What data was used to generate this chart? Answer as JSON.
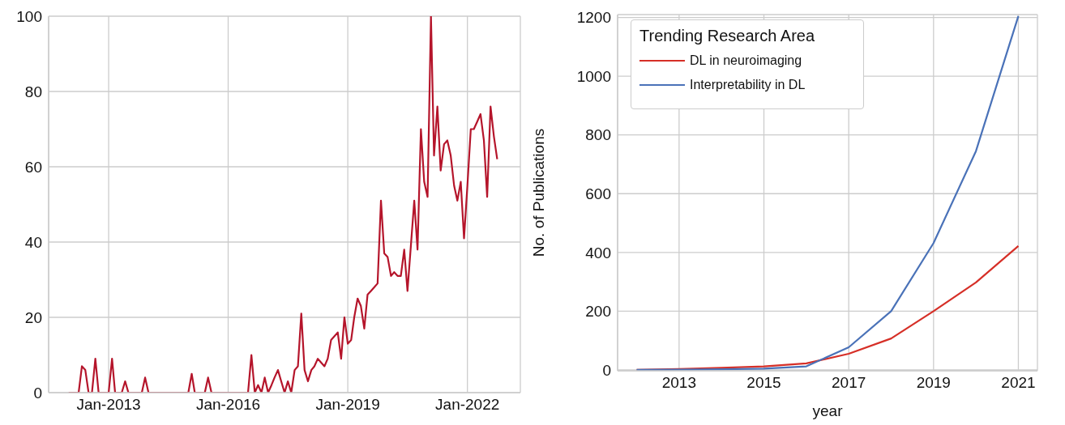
{
  "chart_data": [
    {
      "type": "line",
      "x": [
        "2012-01",
        "2012-02",
        "2012-03",
        "2012-04",
        "2012-05",
        "2012-06",
        "2012-07",
        "2012-08",
        "2012-09",
        "2012-10",
        "2012-11",
        "2012-12",
        "2013-01",
        "2013-02",
        "2013-03",
        "2013-04",
        "2013-05",
        "2013-06",
        "2013-07",
        "2013-08",
        "2013-09",
        "2013-10",
        "2013-11",
        "2013-12",
        "2014-01",
        "2014-02",
        "2014-03",
        "2014-04",
        "2014-05",
        "2014-06",
        "2014-07",
        "2014-08",
        "2014-09",
        "2014-10",
        "2014-11",
        "2014-12",
        "2015-01",
        "2015-02",
        "2015-03",
        "2015-04",
        "2015-05",
        "2015-06",
        "2015-07",
        "2015-08",
        "2015-09",
        "2015-10",
        "2015-11",
        "2015-12",
        "2016-01",
        "2016-02",
        "2016-03",
        "2016-04",
        "2016-05",
        "2016-06",
        "2016-07",
        "2016-08",
        "2016-09",
        "2016-10",
        "2016-11",
        "2016-12",
        "2017-01",
        "2017-02",
        "2017-03",
        "2017-04",
        "2017-05",
        "2017-06",
        "2017-07",
        "2017-08",
        "2017-09",
        "2017-10",
        "2017-11",
        "2017-12",
        "2018-01",
        "2018-02",
        "2018-03",
        "2018-04",
        "2018-05",
        "2018-06",
        "2018-07",
        "2018-08",
        "2018-09",
        "2018-10",
        "2018-11",
        "2018-12",
        "2019-01",
        "2019-02",
        "2019-03",
        "2019-04",
        "2019-05",
        "2019-06",
        "2019-07",
        "2019-08",
        "2019-09",
        "2019-10",
        "2019-11",
        "2019-12",
        "2020-01",
        "2020-02",
        "2020-03",
        "2020-04",
        "2020-05",
        "2020-06",
        "2020-07",
        "2020-08",
        "2020-09",
        "2020-10",
        "2020-11",
        "2020-12",
        "2021-01",
        "2021-02",
        "2021-03",
        "2021-04",
        "2021-05",
        "2021-06",
        "2021-07",
        "2021-08",
        "2021-09",
        "2021-10",
        "2021-11",
        "2021-12",
        "2022-01",
        "2022-02",
        "2022-03",
        "2022-04",
        "2022-05",
        "2022-06",
        "2022-07",
        "2022-08",
        "2022-09",
        "2022-10"
      ],
      "series": [
        {
          "color": "#b5152b",
          "values": [
            0,
            0,
            0,
            0,
            7,
            6,
            0,
            0,
            9,
            0,
            0,
            0,
            0,
            9,
            0,
            0,
            0,
            3,
            0,
            0,
            0,
            0,
            0,
            4,
            0,
            0,
            0,
            0,
            0,
            0,
            0,
            0,
            0,
            0,
            0,
            0,
            0,
            5,
            0,
            0,
            0,
            0,
            4,
            0,
            0,
            0,
            0,
            0,
            0,
            0,
            0,
            0,
            0,
            0,
            0,
            10,
            0,
            2,
            0,
            4,
            0,
            2,
            4,
            6,
            3,
            0,
            3,
            0,
            6,
            7,
            21,
            6,
            3,
            6,
            7,
            9,
            8,
            7,
            9,
            14,
            15,
            16,
            9,
            20,
            13,
            14,
            20,
            25,
            23,
            17,
            26,
            27,
            28,
            29,
            51,
            37,
            36,
            31,
            32,
            31,
            31,
            38,
            27,
            39,
            51,
            38,
            70,
            56,
            52,
            100,
            63,
            76,
            59,
            66,
            67,
            63,
            55,
            51,
            56,
            41,
            55,
            70,
            70,
            72,
            74,
            67,
            52,
            76,
            68,
            62
          ]
        }
      ],
      "xlim": [
        "2011-07",
        "2023-05"
      ],
      "xticks": [
        {
          "value": "2013-01",
          "label": "Jan-2013"
        },
        {
          "value": "2016-01",
          "label": "Jan-2016"
        },
        {
          "value": "2019-01",
          "label": "Jan-2019"
        },
        {
          "value": "2022-01",
          "label": "Jan-2022"
        }
      ],
      "ylim": [
        0,
        100
      ],
      "yticks": [
        0,
        20,
        40,
        60,
        80,
        100
      ],
      "grid": true
    },
    {
      "type": "line",
      "xlabel": "year",
      "ylabel": "No. of Publications",
      "legend_title": "Trending Research Area",
      "x": [
        2012,
        2013,
        2014,
        2015,
        2016,
        2017,
        2018,
        2019,
        2020,
        2021
      ],
      "series": [
        {
          "name": "DL in neuroimaging",
          "color": "#d62f27",
          "values": [
            0,
            3,
            7,
            12,
            22,
            55,
            107,
            200,
            298,
            422
          ]
        },
        {
          "name": "Interpretability in DL",
          "color": "#4a72b8",
          "values": [
            0,
            1,
            2,
            4,
            12,
            77,
            200,
            432,
            745,
            1205
          ]
        }
      ],
      "xlim": [
        2011.55,
        2021.45
      ],
      "xticks": [
        2013,
        2015,
        2017,
        2019,
        2021
      ],
      "ylim": [
        -3,
        1210
      ],
      "yticks": [
        0,
        200,
        400,
        600,
        800,
        1000,
        1200
      ],
      "grid": true,
      "legend": "top left"
    }
  ]
}
